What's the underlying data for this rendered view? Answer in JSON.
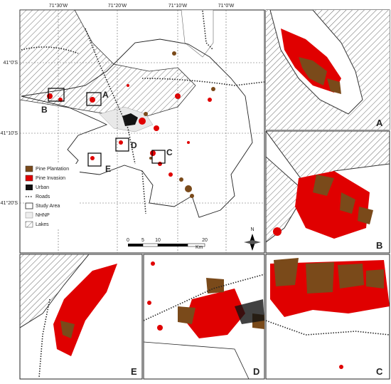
{
  "map": {
    "lon_labels": [
      "71°30'W",
      "71°20'W",
      "71°10'W",
      "71°0'W"
    ],
    "lat_labels": [
      "41°0'S",
      "41°10'S",
      "41°20'S"
    ],
    "legend": [
      "Pine Plantation",
      "Pine Invasion",
      "Urban",
      "Roads",
      "Study Area",
      "NHNP",
      "Lakes"
    ],
    "scale": {
      "ticks": [
        0,
        5,
        10,
        20
      ],
      "unit": "Km"
    },
    "north": "N",
    "inset_markers": [
      "A",
      "B",
      "C",
      "D",
      "E"
    ]
  },
  "panels": [
    {
      "label": "A"
    },
    {
      "label": "B"
    },
    {
      "label": "E"
    },
    {
      "label": "D"
    },
    {
      "label": "C"
    }
  ]
}
